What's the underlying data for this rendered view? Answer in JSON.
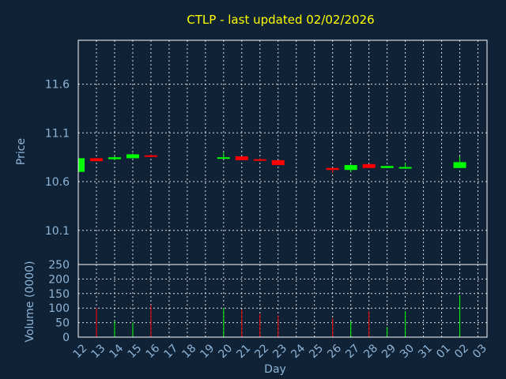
{
  "chart_data": {
    "type": "candlestick",
    "title": "CTLP - last updated 02/02/2026",
    "price_panel": {
      "ylabel": "Price",
      "ylim": [
        9.75,
        12.05
      ],
      "yticks": [
        10.1,
        10.6,
        11.1,
        11.6
      ],
      "ytick_labels": [
        "10.1",
        "10.6",
        "11.1",
        "11.6"
      ]
    },
    "volume_panel": {
      "ylabel": "Volume (0000)",
      "ylim": [
        0,
        250
      ],
      "yticks": [
        0,
        50,
        100,
        150,
        200,
        250
      ],
      "ytick_labels": [
        "0",
        "50",
        "100",
        "150",
        "200",
        "250"
      ]
    },
    "xlabel": "Day",
    "x_ticks": [
      "12",
      "13",
      "14",
      "15",
      "16",
      "17",
      "18",
      "19",
      "20",
      "21",
      "22",
      "23",
      "24",
      "25",
      "26",
      "27",
      "28",
      "29",
      "30",
      "31",
      "01",
      "02",
      "03"
    ],
    "candles": [
      {
        "day": "12",
        "open": 10.7,
        "close": 10.84,
        "high": 10.84,
        "low": 10.7,
        "volume": 0
      },
      {
        "day": "13",
        "open": 10.84,
        "close": 10.81,
        "high": 10.84,
        "low": 10.81,
        "volume": 100
      },
      {
        "day": "14",
        "open": 10.83,
        "close": 10.85,
        "high": 10.86,
        "low": 10.82,
        "volume": 55
      },
      {
        "day": "15",
        "open": 10.84,
        "close": 10.88,
        "high": 10.89,
        "low": 10.84,
        "volume": 50
      },
      {
        "day": "16",
        "open": 10.87,
        "close": 10.86,
        "high": 10.88,
        "low": 10.85,
        "volume": 110
      },
      {
        "day": "20",
        "open": 10.84,
        "close": 10.85,
        "high": 10.9,
        "low": 10.84,
        "volume": 100
      },
      {
        "day": "21",
        "open": 10.86,
        "close": 10.82,
        "high": 10.86,
        "low": 10.82,
        "volume": 95
      },
      {
        "day": "22",
        "open": 10.83,
        "close": 10.82,
        "high": 10.84,
        "low": 10.81,
        "volume": 80
      },
      {
        "day": "23",
        "open": 10.82,
        "close": 10.77,
        "high": 10.82,
        "low": 10.77,
        "volume": 75
      },
      {
        "day": "26",
        "open": 10.74,
        "close": 10.72,
        "high": 10.74,
        "low": 10.69,
        "volume": 65
      },
      {
        "day": "27",
        "open": 10.72,
        "close": 10.77,
        "high": 10.78,
        "low": 10.7,
        "volume": 55
      },
      {
        "day": "28",
        "open": 10.78,
        "close": 10.74,
        "high": 10.78,
        "low": 10.74,
        "volume": 90
      },
      {
        "day": "29",
        "open": 10.74,
        "close": 10.76,
        "high": 10.76,
        "low": 10.74,
        "volume": 35
      },
      {
        "day": "30",
        "open": 10.74,
        "close": 10.75,
        "high": 10.79,
        "low": 10.73,
        "volume": 90
      },
      {
        "day": "02",
        "open": 10.74,
        "close": 10.8,
        "high": 10.86,
        "low": 10.74,
        "volume": 145
      }
    ],
    "colors": {
      "up": "#00ff00",
      "down": "#ff0000",
      "background": "#0f2236",
      "grid": "#ffffff",
      "title": "#ffff00",
      "axis_text": "#8fb5d8"
    }
  }
}
